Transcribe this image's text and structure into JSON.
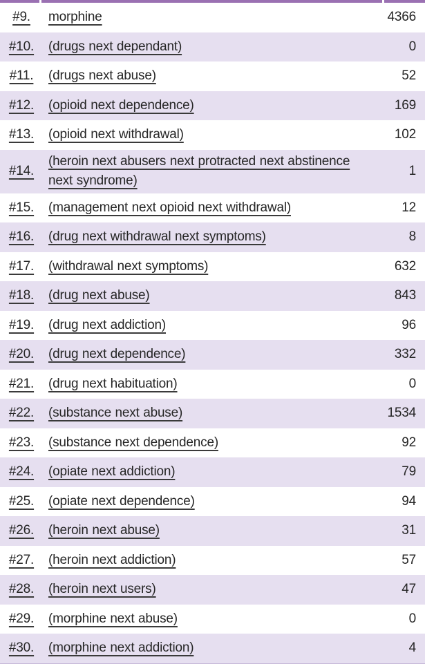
{
  "colors": {
    "stripe": "#e6dff0",
    "top_border": "#9a70b2",
    "bottom_border": "#c5b7d8",
    "underline": "#3a3a3a",
    "text": "#262626",
    "bg": "#ffffff"
  },
  "table": {
    "description": "search-history-table",
    "columns": [
      "number",
      "term",
      "count"
    ],
    "rows": [
      {
        "number": "#9.",
        "term": "morphine",
        "count": "4366"
      },
      {
        "number": "#10.",
        "term": "(drugs next dependant)",
        "count": "0"
      },
      {
        "number": "#11.",
        "term": "(drugs next abuse)",
        "count": "52"
      },
      {
        "number": "#12.",
        "term": "(opioid next dependence)",
        "count": "169"
      },
      {
        "number": "#13.",
        "term": "(opioid next withdrawal)",
        "count": "102"
      },
      {
        "number": "#14.",
        "term": "(heroin next abusers next protracted next abstinence next syndrome)",
        "count": "1"
      },
      {
        "number": "#15.",
        "term": "(management next opioid next withdrawal)",
        "count": "12"
      },
      {
        "number": "#16.",
        "term": "(drug next withdrawal next symptoms)",
        "count": "8"
      },
      {
        "number": "#17.",
        "term": "(withdrawal next symptoms)",
        "count": "632"
      },
      {
        "number": "#18.",
        "term": "(drug next abuse)",
        "count": "843"
      },
      {
        "number": "#19.",
        "term": "(drug next addiction)",
        "count": "96"
      },
      {
        "number": "#20.",
        "term": "(drug next dependence)",
        "count": "332"
      },
      {
        "number": "#21.",
        "term": "(drug next habituation)",
        "count": "0"
      },
      {
        "number": "#22.",
        "term": "(substance next abuse)",
        "count": "1534"
      },
      {
        "number": "#23.",
        "term": "(substance next dependence)",
        "count": "92"
      },
      {
        "number": "#24.",
        "term": "(opiate next addiction)",
        "count": "79"
      },
      {
        "number": "#25.",
        "term": "(opiate next dependence)",
        "count": "94"
      },
      {
        "number": "#26.",
        "term": "(heroin next abuse)",
        "count": "31"
      },
      {
        "number": "#27.",
        "term": "(heroin next addiction)",
        "count": "57"
      },
      {
        "number": "#28.",
        "term": "(heroin next users)",
        "count": "47"
      },
      {
        "number": "#29.",
        "term": "(morphine next abuse)",
        "count": "0"
      },
      {
        "number": "#30.",
        "term": "(morphine next addiction)",
        "count": "4"
      }
    ]
  }
}
